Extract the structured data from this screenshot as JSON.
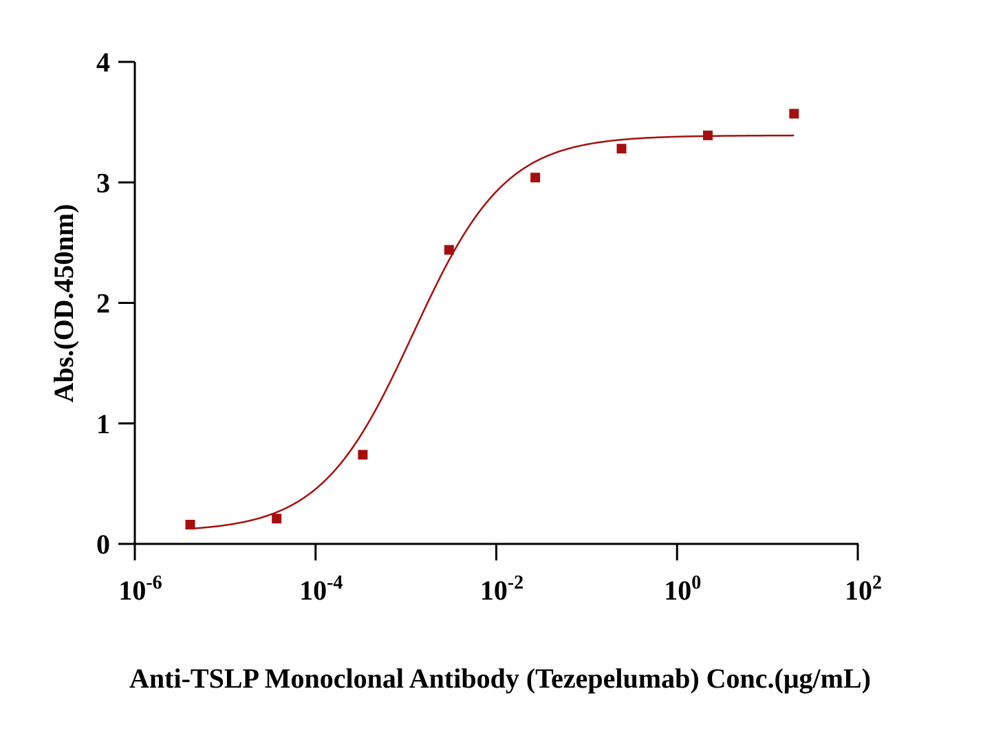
{
  "chart_data": {
    "type": "scatter",
    "title": "",
    "xlabel": "Anti-TSLP Monoclonal Antibody (Tezepelumab) Conc.(μg/mL)",
    "ylabel": "Abs.(OD.450nm)",
    "x_scale": "log10",
    "xlim": [
      1e-06,
      100
    ],
    "ylim": [
      0,
      4
    ],
    "x_ticks": [
      {
        "base": "10",
        "exp": "-6",
        "value": 1e-06
      },
      {
        "base": "10",
        "exp": "-4",
        "value": 0.0001
      },
      {
        "base": "10",
        "exp": "-2",
        "value": 0.01
      },
      {
        "base": "10",
        "exp": "0",
        "value": 1
      },
      {
        "base": "10",
        "exp": "2",
        "value": 100
      }
    ],
    "y_ticks": [
      "0",
      "1",
      "2",
      "3",
      "4"
    ],
    "grid": false,
    "legend": "none",
    "series": [
      {
        "color": "#a50f0f",
        "marker": "square",
        "x": [
          4.1e-06,
          3.71e-05,
          0.000333,
          0.003,
          0.027,
          0.243,
          2.19,
          19.7
        ],
        "y": [
          0.16,
          0.21,
          0.74,
          2.44,
          3.04,
          3.28,
          3.39,
          3.57
        ],
        "fit_curve": {
          "model": "4PL",
          "bottom": 0.1,
          "top": 3.39,
          "ec50": 0.0012,
          "hill": 0.85,
          "x_range": [
            4.1e-06,
            19.7
          ]
        }
      }
    ]
  }
}
